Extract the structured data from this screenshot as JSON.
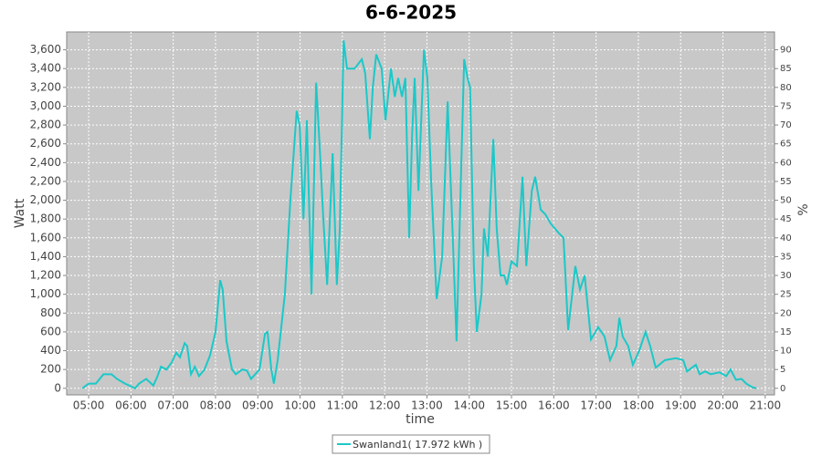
{
  "chart_data": {
    "type": "line",
    "title": "6-6-2025",
    "x_label": "time",
    "y_label": "Watt",
    "y2_label": "%",
    "x": [
      4.85,
      5.0,
      5.17,
      5.35,
      5.54,
      5.67,
      5.86,
      6.1,
      6.19,
      6.36,
      6.53,
      6.62,
      6.71,
      6.84,
      6.97,
      7.07,
      7.16,
      7.27,
      7.33,
      7.42,
      7.51,
      7.61,
      7.74,
      7.87,
      8.0,
      8.11,
      8.17,
      8.26,
      8.39,
      8.48,
      8.63,
      8.74,
      8.84,
      9.04,
      9.17,
      9.23,
      9.32,
      9.38,
      9.47,
      9.64,
      9.77,
      9.92,
      9.99,
      10.08,
      10.16,
      10.27,
      10.38,
      10.46,
      10.55,
      10.64,
      10.77,
      10.87,
      10.94,
      11.03,
      11.11,
      11.29,
      11.46,
      11.54,
      11.65,
      11.72,
      11.8,
      11.93,
      12.02,
      12.15,
      12.24,
      12.32,
      12.41,
      12.49,
      12.58,
      12.65,
      12.71,
      12.8,
      12.93,
      13.01,
      13.1,
      13.23,
      13.36,
      13.49,
      13.62,
      13.7,
      13.79,
      13.88,
      13.96,
      14.02,
      14.11,
      14.18,
      14.29,
      14.35,
      14.44,
      14.57,
      14.65,
      14.74,
      14.83,
      14.89,
      15.0,
      15.13,
      15.26,
      15.35,
      15.48,
      15.56,
      15.69,
      15.8,
      15.93,
      16.12,
      16.23,
      16.34,
      16.51,
      16.62,
      16.73,
      16.88,
      17.05,
      17.2,
      17.33,
      17.48,
      17.55,
      17.63,
      17.76,
      17.87,
      18.02,
      18.17,
      18.28,
      18.41,
      18.63,
      18.89,
      19.06,
      19.15,
      19.36,
      19.45,
      19.58,
      19.71,
      19.92,
      20.08,
      20.18,
      20.31,
      20.44,
      20.55,
      20.7,
      20.79
    ],
    "series": [
      {
        "name": "Swanland1( 17.972 kWh )",
        "color": "#1cc8c8",
        "values": [
          0,
          50,
          50,
          150,
          150,
          100,
          50,
          0,
          50,
          100,
          30,
          120,
          230,
          200,
          280,
          380,
          330,
          480,
          450,
          150,
          230,
          130,
          200,
          350,
          600,
          1150,
          1050,
          500,
          200,
          150,
          200,
          190,
          100,
          200,
          580,
          600,
          200,
          50,
          300,
          1000,
          2000,
          2950,
          2800,
          1800,
          2850,
          1000,
          3250,
          2600,
          1800,
          1100,
          2500,
          1100,
          1700,
          3700,
          3400,
          3400,
          3500,
          3350,
          2650,
          3200,
          3550,
          3400,
          2850,
          3400,
          3100,
          3300,
          3100,
          3300,
          1600,
          2700,
          3300,
          2100,
          3600,
          3300,
          2200,
          950,
          1400,
          3050,
          1500,
          500,
          2000,
          3500,
          3300,
          3200,
          1300,
          600,
          1000,
          1700,
          1400,
          2650,
          1700,
          1200,
          1200,
          1100,
          1350,
          1300,
          2250,
          1300,
          2100,
          2250,
          1900,
          1850,
          1750,
          1650,
          1600,
          620,
          1300,
          1050,
          1200,
          520,
          650,
          550,
          300,
          450,
          750,
          550,
          450,
          250,
          400,
          600,
          450,
          220,
          300,
          320,
          300,
          180,
          250,
          150,
          180,
          150,
          170,
          130,
          200,
          90,
          100,
          50,
          10,
          0
        ]
      }
    ],
    "xlim": [
      4.48,
      21.22
    ],
    "xticks": [
      {
        "value": 5,
        "label": "05:00"
      },
      {
        "value": 6,
        "label": "06:00"
      },
      {
        "value": 7,
        "label": "07:00"
      },
      {
        "value": 8,
        "label": "08:00"
      },
      {
        "value": 9,
        "label": "09:00"
      },
      {
        "value": 10,
        "label": "10:00"
      },
      {
        "value": 11,
        "label": "11:00"
      },
      {
        "value": 12,
        "label": "12:00"
      },
      {
        "value": 13,
        "label": "13:00"
      },
      {
        "value": 14,
        "label": "14:00"
      },
      {
        "value": 15,
        "label": "15:00"
      },
      {
        "value": 16,
        "label": "16:00"
      },
      {
        "value": 17,
        "label": "17:00"
      },
      {
        "value": 18,
        "label": "18:00"
      },
      {
        "value": 19,
        "label": "19:00"
      },
      {
        "value": 20,
        "label": "20:00"
      },
      {
        "value": 21,
        "label": "21:00"
      }
    ],
    "ylim": [
      -70,
      3790
    ],
    "yticks": [
      0,
      200,
      400,
      600,
      800,
      {
        "value": 1000,
        "label": "1,000"
      },
      {
        "value": 1200,
        "label": "1,200"
      },
      {
        "value": 1400,
        "label": "1,400"
      },
      {
        "value": 1600,
        "label": "1,600"
      },
      {
        "value": 1800,
        "label": "1,800"
      },
      {
        "value": 2000,
        "label": "2,000"
      },
      {
        "value": 2200,
        "label": "2,200"
      },
      {
        "value": 2400,
        "label": "2,400"
      },
      {
        "value": 2600,
        "label": "2,600"
      },
      {
        "value": 2800,
        "label": "2,800"
      },
      {
        "value": 3000,
        "label": "3,000"
      },
      {
        "value": 3200,
        "label": "3,200"
      },
      {
        "value": 3400,
        "label": "3,400"
      },
      {
        "value": 3600,
        "label": "3,600"
      }
    ],
    "y2lim": [
      -1.75,
      94.75
    ],
    "y2ticks": [
      0,
      5,
      10,
      15,
      20,
      25,
      30,
      35,
      40,
      45,
      50,
      55,
      60,
      65,
      70,
      75,
      80,
      85,
      90
    ],
    "grid": true
  }
}
